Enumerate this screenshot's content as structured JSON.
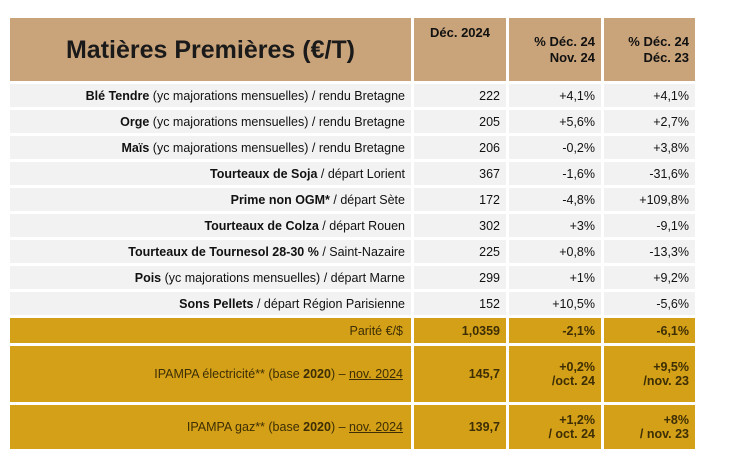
{
  "header": {
    "title": "Matières Premières (€/T)",
    "col_dec": "Déc. 2024",
    "col_m_line1": "% Déc. 24",
    "col_m_line2": "Nov. 24",
    "col_y_line1": "% Déc. 24",
    "col_y_line2": "Déc. 23"
  },
  "rows": [
    {
      "name": "Blé Tendre",
      "desc": " (yc majorations mensuelles) / rendu Bretagne",
      "price": "222",
      "m": "+4,1%",
      "y": "+4,1%"
    },
    {
      "name": "Orge",
      "desc": " (yc majorations mensuelles) / rendu Bretagne",
      "price": "205",
      "m": "+5,6%",
      "y": "+2,7%"
    },
    {
      "name": "Maïs",
      "desc": " (yc majorations mensuelles) / rendu Bretagne",
      "price": "206",
      "m": "-0,2%",
      "y": "+3,8%"
    },
    {
      "name": "Tourteaux de Soja",
      "desc": " / départ Lorient",
      "price": "367",
      "m": "-1,6%",
      "y": "-31,6%"
    },
    {
      "name": "Prime non OGM*",
      "desc": " / départ Sète",
      "price": "172",
      "m": "-4,8%",
      "y": "+109,8%"
    },
    {
      "name": "Tourteaux de Colza",
      "desc": " / départ Rouen",
      "price": "302",
      "m": "+3%",
      "y": "-9,1%"
    },
    {
      "name": "Tourteaux de Tournesol 28-30 %",
      "desc": " / Saint-Nazaire",
      "price": "225",
      "m": "+0,8%",
      "y": "-13,3%"
    },
    {
      "name": "Pois",
      "desc": " (yc majorations mensuelles) / départ Marne",
      "price": "299",
      "m": "+1%",
      "y": "+9,2%"
    },
    {
      "name": "Sons Pellets",
      "desc": " / départ Région Parisienne",
      "price": "152",
      "m": "+10,5%",
      "y": "-5,6%"
    }
  ],
  "parity": {
    "label": "Parité €/$",
    "value": "1,0359",
    "m": "-2,1%",
    "y": "-6,1%"
  },
  "ipampa_elec": {
    "label_a": "IPAMPA électricité** (base ",
    "label_b": "2020",
    "label_c": ") – ",
    "label_d": "nov. 2024",
    "value": "145,7",
    "m1": "+0,2%",
    "m2": "/oct. 24",
    "y1": "+9,5%",
    "y2": "/nov. 23"
  },
  "ipampa_gaz": {
    "label_a": "IPAMPA gaz** (base ",
    "label_b": "2020",
    "label_c": ") – ",
    "label_d": "nov. 2024",
    "value": "139,7",
    "m1": "+1,2%",
    "m2": "/ oct. 24",
    "y1": "+8%",
    "y2": "/ nov. 23"
  }
}
